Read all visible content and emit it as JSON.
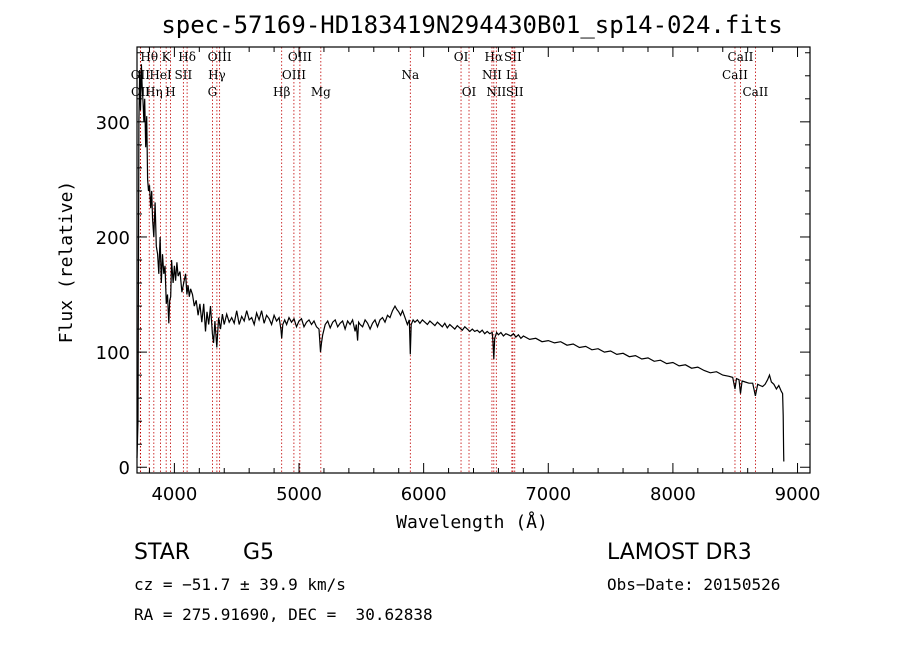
{
  "chart_data": {
    "type": "line",
    "title": "spec-57169-HD183419N294430B01_sp14-024.fits",
    "xlabel": "Wavelength (Å)",
    "ylabel": "Flux (relative)",
    "xlim": [
      3700,
      9100
    ],
    "ylim": [
      -5,
      365
    ],
    "xticks": [
      4000,
      5000,
      6000,
      7000,
      8000,
      9000
    ],
    "yticks": [
      0,
      100,
      200,
      300
    ],
    "series": [
      {
        "name": "flux",
        "points": [
          [
            3700,
            8
          ],
          [
            3708,
            40
          ],
          [
            3715,
            300
          ],
          [
            3722,
            345
          ],
          [
            3728,
            310
          ],
          [
            3735,
            350
          ],
          [
            3742,
            330
          ],
          [
            3748,
            318
          ],
          [
            3755,
            300
          ],
          [
            3762,
            320
          ],
          [
            3770,
            278
          ],
          [
            3778,
            305
          ],
          [
            3785,
            250
          ],
          [
            3792,
            240
          ],
          [
            3800,
            245
          ],
          [
            3810,
            225
          ],
          [
            3818,
            240
          ],
          [
            3825,
            215
          ],
          [
            3835,
            200
          ],
          [
            3845,
            230
          ],
          [
            3855,
            192
          ],
          [
            3865,
            185
          ],
          [
            3875,
            168
          ],
          [
            3885,
            200
          ],
          [
            3895,
            160
          ],
          [
            3905,
            185
          ],
          [
            3915,
            168
          ],
          [
            3925,
            175
          ],
          [
            3935,
            142
          ],
          [
            3945,
            150
          ],
          [
            3955,
            125
          ],
          [
            3962,
            145
          ],
          [
            3970,
            148
          ],
          [
            3978,
            180
          ],
          [
            3990,
            160
          ],
          [
            4000,
            175
          ],
          [
            4010,
            162
          ],
          [
            4020,
            178
          ],
          [
            4030,
            166
          ],
          [
            4045,
            170
          ],
          [
            4060,
            152
          ],
          [
            4075,
            160
          ],
          [
            4090,
            168
          ],
          [
            4100,
            150
          ],
          [
            4110,
            158
          ],
          [
            4120,
            148
          ],
          [
            4130,
            155
          ],
          [
            4145,
            150
          ],
          [
            4160,
            140
          ],
          [
            4175,
            145
          ],
          [
            4190,
            132
          ],
          [
            4205,
            142
          ],
          [
            4220,
            126
          ],
          [
            4235,
            142
          ],
          [
            4250,
            118
          ],
          [
            4262,
            135
          ],
          [
            4275,
            124
          ],
          [
            4290,
            140
          ],
          [
            4305,
            116
          ],
          [
            4315,
            108
          ],
          [
            4325,
            127
          ],
          [
            4340,
            104
          ],
          [
            4355,
            130
          ],
          [
            4370,
            120
          ],
          [
            4385,
            133
          ],
          [
            4400,
            124
          ],
          [
            4420,
            133
          ],
          [
            4440,
            126
          ],
          [
            4460,
            130
          ],
          [
            4480,
            125
          ],
          [
            4500,
            136
          ],
          [
            4520,
            124
          ],
          [
            4540,
            131
          ],
          [
            4560,
            127
          ],
          [
            4580,
            136
          ],
          [
            4600,
            128
          ],
          [
            4620,
            130
          ],
          [
            4640,
            124
          ],
          [
            4660,
            134
          ],
          [
            4680,
            128
          ],
          [
            4700,
            136
          ],
          [
            4720,
            125
          ],
          [
            4740,
            132
          ],
          [
            4760,
            129
          ],
          [
            4780,
            124
          ],
          [
            4800,
            132
          ],
          [
            4820,
            127
          ],
          [
            4840,
            130
          ],
          [
            4855,
            120
          ],
          [
            4861,
            112
          ],
          [
            4870,
            124
          ],
          [
            4885,
            128
          ],
          [
            4900,
            124
          ],
          [
            4920,
            130
          ],
          [
            4940,
            126
          ],
          [
            4960,
            129
          ],
          [
            4980,
            122
          ],
          [
            5000,
            127
          ],
          [
            5020,
            129
          ],
          [
            5040,
            122
          ],
          [
            5060,
            126
          ],
          [
            5080,
            128
          ],
          [
            5100,
            124
          ],
          [
            5120,
            127
          ],
          [
            5140,
            122
          ],
          [
            5160,
            120
          ],
          [
            5172,
            100
          ],
          [
            5180,
            108
          ],
          [
            5190,
            115
          ],
          [
            5210,
            124
          ],
          [
            5230,
            127
          ],
          [
            5250,
            121
          ],
          [
            5270,
            126
          ],
          [
            5290,
            128
          ],
          [
            5310,
            122
          ],
          [
            5330,
            125
          ],
          [
            5350,
            127
          ],
          [
            5370,
            120
          ],
          [
            5390,
            127
          ],
          [
            5410,
            124
          ],
          [
            5430,
            128
          ],
          [
            5450,
            118
          ],
          [
            5460,
            124
          ],
          [
            5470,
            110
          ],
          [
            5478,
            126
          ],
          [
            5490,
            124
          ],
          [
            5510,
            122
          ],
          [
            5530,
            128
          ],
          [
            5550,
            125
          ],
          [
            5570,
            120
          ],
          [
            5590,
            125
          ],
          [
            5610,
            128
          ],
          [
            5630,
            122
          ],
          [
            5650,
            128
          ],
          [
            5670,
            130
          ],
          [
            5690,
            126
          ],
          [
            5710,
            132
          ],
          [
            5730,
            130
          ],
          [
            5750,
            136
          ],
          [
            5770,
            140
          ],
          [
            5785,
            137
          ],
          [
            5800,
            135
          ],
          [
            5815,
            132
          ],
          [
            5830,
            136
          ],
          [
            5850,
            130
          ],
          [
            5870,
            124
          ],
          [
            5885,
            128
          ],
          [
            5893,
            98
          ],
          [
            5900,
            124
          ],
          [
            5915,
            128
          ],
          [
            5930,
            126
          ],
          [
            5950,
            128
          ],
          [
            5970,
            125
          ],
          [
            5990,
            128
          ],
          [
            6010,
            126
          ],
          [
            6030,
            124
          ],
          [
            6050,
            127
          ],
          [
            6070,
            125
          ],
          [
            6090,
            123
          ],
          [
            6110,
            126
          ],
          [
            6130,
            124
          ],
          [
            6150,
            122
          ],
          [
            6170,
            125
          ],
          [
            6190,
            121
          ],
          [
            6210,
            124
          ],
          [
            6230,
            122
          ],
          [
            6250,
            120
          ],
          [
            6270,
            123
          ],
          [
            6290,
            121
          ],
          [
            6310,
            119
          ],
          [
            6330,
            122
          ],
          [
            6350,
            120
          ],
          [
            6370,
            118
          ],
          [
            6390,
            120
          ],
          [
            6410,
            118
          ],
          [
            6430,
            119
          ],
          [
            6450,
            117
          ],
          [
            6470,
            119
          ],
          [
            6490,
            116
          ],
          [
            6510,
            118
          ],
          [
            6530,
            116
          ],
          [
            6550,
            117
          ],
          [
            6556,
            110
          ],
          [
            6563,
            94
          ],
          [
            6570,
            112
          ],
          [
            6585,
            117
          ],
          [
            6600,
            115
          ],
          [
            6620,
            117
          ],
          [
            6640,
            114
          ],
          [
            6660,
            116
          ],
          [
            6680,
            115
          ],
          [
            6700,
            114
          ],
          [
            6720,
            116
          ],
          [
            6740,
            113
          ],
          [
            6760,
            115
          ],
          [
            6780,
            112
          ],
          [
            6800,
            114
          ],
          [
            6850,
            111
          ],
          [
            6900,
            112
          ],
          [
            6950,
            109
          ],
          [
            7000,
            110
          ],
          [
            7050,
            108
          ],
          [
            7100,
            109
          ],
          [
            7150,
            106
          ],
          [
            7200,
            107
          ],
          [
            7250,
            104
          ],
          [
            7300,
            105
          ],
          [
            7350,
            102
          ],
          [
            7400,
            103
          ],
          [
            7450,
            100
          ],
          [
            7500,
            101
          ],
          [
            7550,
            98
          ],
          [
            7600,
            99
          ],
          [
            7650,
            96
          ],
          [
            7700,
            97
          ],
          [
            7750,
            94
          ],
          [
            7800,
            95
          ],
          [
            7850,
            92
          ],
          [
            7900,
            93
          ],
          [
            7950,
            90
          ],
          [
            8000,
            91
          ],
          [
            8050,
            88
          ],
          [
            8100,
            89
          ],
          [
            8150,
            86
          ],
          [
            8200,
            87
          ],
          [
            8250,
            84
          ],
          [
            8300,
            82
          ],
          [
            8350,
            83
          ],
          [
            8400,
            80
          ],
          [
            8450,
            79
          ],
          [
            8480,
            78
          ],
          [
            8498,
            68
          ],
          [
            8510,
            77
          ],
          [
            8530,
            76
          ],
          [
            8542,
            64
          ],
          [
            8555,
            75
          ],
          [
            8580,
            74
          ],
          [
            8610,
            73
          ],
          [
            8640,
            73
          ],
          [
            8662,
            62
          ],
          [
            8680,
            72
          ],
          [
            8700,
            71
          ],
          [
            8720,
            70
          ],
          [
            8740,
            72
          ],
          [
            8760,
            76
          ],
          [
            8775,
            80
          ],
          [
            8790,
            74
          ],
          [
            8810,
            72
          ],
          [
            8830,
            68
          ],
          [
            8850,
            71
          ],
          [
            8870,
            66
          ],
          [
            8880,
            64
          ],
          [
            8885,
            45
          ],
          [
            8888,
            15
          ],
          [
            8890,
            5
          ]
        ]
      }
    ],
    "lines": [
      {
        "label": "Hθ",
        "wl": 3798,
        "row": 0
      },
      {
        "label": "OII",
        "wl": 3727,
        "row": 1
      },
      {
        "label": "OII",
        "wl": 3729,
        "row": 2
      },
      {
        "label": "K",
        "wl": 3934,
        "row": 0
      },
      {
        "label": "HeI",
        "wl": 3889,
        "row": 1
      },
      {
        "label": "Hη",
        "wl": 3835,
        "row": 2
      },
      {
        "label": "Hδ",
        "wl": 4102,
        "row": 0
      },
      {
        "label": "SII",
        "wl": 4072,
        "row": 1
      },
      {
        "label": "H",
        "wl": 3969,
        "row": 2
      },
      {
        "label": "OIII",
        "wl": 4363,
        "row": 0
      },
      {
        "label": "Hγ",
        "wl": 4341,
        "row": 1
      },
      {
        "label": "G",
        "wl": 4305,
        "row": 2
      },
      {
        "label": "OIII",
        "wl": 5007,
        "row": 0
      },
      {
        "label": "OIII",
        "wl": 4959,
        "row": 1
      },
      {
        "label": "Hβ",
        "wl": 4861,
        "row": 2
      },
      {
        "label": "Mg",
        "wl": 5175,
        "row": 2
      },
      {
        "label": "Na",
        "wl": 5893,
        "row": 1
      },
      {
        "label": "OI",
        "wl": 6300,
        "row": 0
      },
      {
        "label": "OI",
        "wl": 6364,
        "row": 2
      },
      {
        "label": "Hα",
        "wl": 6563,
        "row": 0
      },
      {
        "label": "SII",
        "wl": 6716,
        "row": 0
      },
      {
        "label": "NII",
        "wl": 6548,
        "row": 1
      },
      {
        "label": "Li",
        "wl": 6708,
        "row": 1
      },
      {
        "label": "NII",
        "wl": 6583,
        "row": 2
      },
      {
        "label": "SII",
        "wl": 6731,
        "row": 2
      },
      {
        "label": "CaII",
        "wl": 8542,
        "row": 0
      },
      {
        "label": "CaII",
        "wl": 8498,
        "row": 1
      },
      {
        "label": "CaII",
        "wl": 8662,
        "row": 2
      }
    ]
  },
  "info": {
    "class": "STAR",
    "subclass": "G5",
    "survey": "LAMOST DR3",
    "cz": "cz = −51.7 ± 39.9 km/s",
    "obsdate": "Obs−Date: 20150526",
    "radec": "RA = 275.91690, DEC =  30.62838"
  }
}
